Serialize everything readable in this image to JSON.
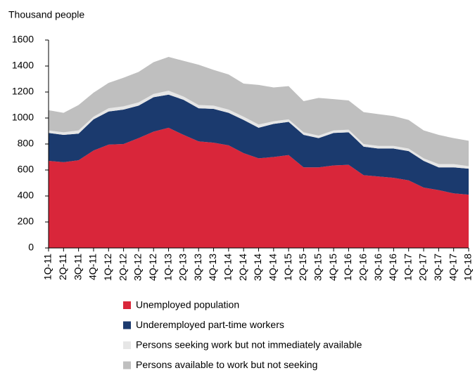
{
  "chart_data": {
    "type": "stacked_area",
    "y_label": "Thousand people",
    "categories": [
      "1Q-11",
      "2Q-11",
      "3Q-11",
      "4Q-11",
      "1Q-12",
      "2Q-12",
      "3Q-12",
      "4Q-12",
      "1Q-13",
      "2Q-13",
      "3Q-13",
      "4Q-13",
      "1Q-14",
      "2Q-14",
      "3Q-14",
      "4Q-14",
      "1Q-15",
      "2Q-15",
      "3Q-15",
      "4Q-15",
      "1Q-16",
      "2Q-16",
      "3Q-16",
      "4Q-16",
      "1Q-17",
      "2Q-17",
      "3Q-17",
      "4Q-17",
      "1Q-18"
    ],
    "series": [
      {
        "name": "Unemployed population",
        "color": "#d9263a",
        "values": [
          670,
          660,
          675,
          750,
          795,
          800,
          845,
          895,
          925,
          870,
          820,
          810,
          790,
          730,
          690,
          700,
          715,
          620,
          620,
          635,
          640,
          560,
          550,
          540,
          520,
          465,
          445,
          420,
          410
        ]
      },
      {
        "name": "Underemployed part-time workers",
        "color": "#1b3a6e",
        "values": [
          215,
          210,
          205,
          240,
          255,
          265,
          250,
          265,
          255,
          270,
          255,
          260,
          250,
          255,
          235,
          255,
          255,
          250,
          225,
          250,
          250,
          220,
          215,
          225,
          225,
          205,
          175,
          200,
          200
        ]
      },
      {
        "name": "Persons seeking work but not immediately available",
        "color": "#e6e6e6",
        "values": [
          20,
          20,
          25,
          20,
          25,
          25,
          25,
          25,
          30,
          25,
          25,
          25,
          25,
          25,
          25,
          20,
          20,
          20,
          20,
          20,
          20,
          20,
          20,
          20,
          20,
          20,
          25,
          25,
          20
        ]
      },
      {
        "name": "Persons available to work but not seeking",
        "color": "#bfbfbf",
        "values": [
          155,
          150,
          195,
          185,
          195,
          220,
          235,
          245,
          260,
          275,
          310,
          275,
          270,
          255,
          305,
          260,
          255,
          240,
          290,
          240,
          225,
          245,
          245,
          230,
          220,
          215,
          225,
          200,
          195
        ]
      }
    ],
    "ylim": [
      0,
      1600
    ],
    "yticks": [
      0,
      200,
      400,
      600,
      800,
      1000,
      1200,
      1400,
      1600
    ],
    "grid": false
  }
}
